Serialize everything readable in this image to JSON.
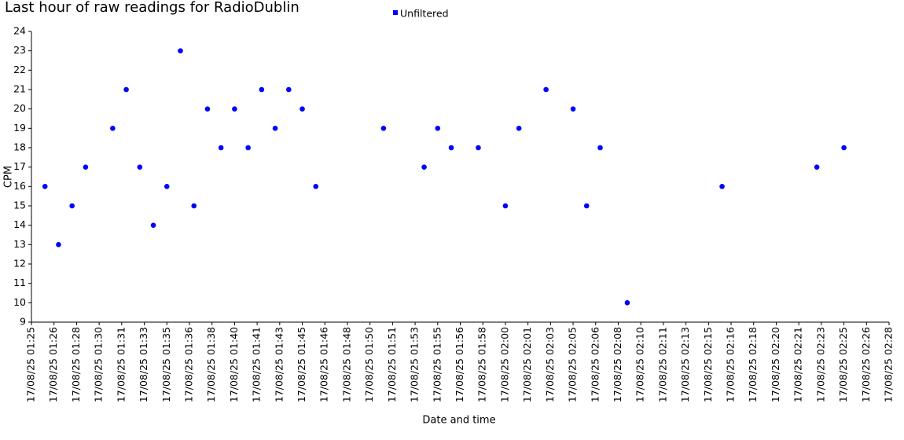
{
  "chart_data": {
    "type": "scatter",
    "title": "Last hour of raw readings for RadioDublin",
    "x_label": "Date and time",
    "y_label": "CPM",
    "legend": "top",
    "grid": false,
    "series": [
      {
        "name": "Unfiltered",
        "color": "#0000ff",
        "x": [
          "17/08/25 01:26",
          "17/08/25 01:27",
          "17/08/25 01:28",
          "17/08/25 01:29",
          "17/08/25 01:31",
          "17/08/25 01:32",
          "17/08/25 01:33",
          "17/08/25 01:34",
          "17/08/25 01:35",
          "17/08/25 01:36",
          "17/08/25 01:37",
          "17/08/25 01:38",
          "17/08/25 01:39",
          "17/08/25 01:40",
          "17/08/25 01:41",
          "17/08/25 01:42",
          "17/08/25 01:43",
          "17/08/25 01:44",
          "17/08/25 01:45",
          "17/08/25 01:46",
          "17/08/25 01:51",
          "17/08/25 01:54",
          "17/08/25 01:55",
          "17/08/25 01:56",
          "17/08/25 01:58",
          "17/08/25 02:00",
          "17/08/25 02:01",
          "17/08/25 02:03",
          "17/08/25 02:05",
          "17/08/25 02:06",
          "17/08/25 02:07",
          "17/08/25 02:09",
          "17/08/25 02:16",
          "17/08/25 02:23",
          "17/08/25 02:25"
        ],
        "values": [
          16,
          13,
          15,
          17,
          19,
          21,
          17,
          14,
          16,
          23,
          15,
          20,
          18,
          20,
          18,
          21,
          19,
          21,
          20,
          16,
          19,
          17,
          19,
          18,
          18,
          15,
          19,
          21,
          20,
          15,
          18,
          10,
          16,
          17,
          18
        ]
      }
    ],
    "xlim": [
      "17/08/25 01:25:00",
      "17/08/25 02:28:20"
    ],
    "xticks": [
      {
        "value": "17/08/25 01:25:00",
        "label": "17/08/25 01:25"
      },
      {
        "value": "17/08/25 01:26:40",
        "label": "17/08/25 01:26"
      },
      {
        "value": "17/08/25 01:28:20",
        "label": "17/08/25 01:28"
      },
      {
        "value": "17/08/25 01:30:00",
        "label": "17/08/25 01:30"
      },
      {
        "value": "17/08/25 01:31:40",
        "label": "17/08/25 01:31"
      },
      {
        "value": "17/08/25 01:33:20",
        "label": "17/08/25 01:33"
      },
      {
        "value": "17/08/25 01:35:00",
        "label": "17/08/25 01:35"
      },
      {
        "value": "17/08/25 01:36:40",
        "label": "17/08/25 01:36"
      },
      {
        "value": "17/08/25 01:38:20",
        "label": "17/08/25 01:38"
      },
      {
        "value": "17/08/25 01:40:00",
        "label": "17/08/25 01:40"
      },
      {
        "value": "17/08/25 01:41:40",
        "label": "17/08/25 01:41"
      },
      {
        "value": "17/08/25 01:43:20",
        "label": "17/08/25 01:43"
      },
      {
        "value": "17/08/25 01:45:00",
        "label": "17/08/25 01:45"
      },
      {
        "value": "17/08/25 01:46:40",
        "label": "17/08/25 01:46"
      },
      {
        "value": "17/08/25 01:48:20",
        "label": "17/08/25 01:48"
      },
      {
        "value": "17/08/25 01:50:00",
        "label": "17/08/25 01:50"
      },
      {
        "value": "17/08/25 01:51:40",
        "label": "17/08/25 01:51"
      },
      {
        "value": "17/08/25 01:53:20",
        "label": "17/08/25 01:53"
      },
      {
        "value": "17/08/25 01:55:00",
        "label": "17/08/25 01:55"
      },
      {
        "value": "17/08/25 01:56:40",
        "label": "17/08/25 01:56"
      },
      {
        "value": "17/08/25 01:58:20",
        "label": "17/08/25 01:58"
      },
      {
        "value": "17/08/25 02:00:00",
        "label": "17/08/25 02:00"
      },
      {
        "value": "17/08/25 02:01:40",
        "label": "17/08/25 02:01"
      },
      {
        "value": "17/08/25 02:03:20",
        "label": "17/08/25 02:03"
      },
      {
        "value": "17/08/25 02:05:00",
        "label": "17/08/25 02:05"
      },
      {
        "value": "17/08/25 02:06:40",
        "label": "17/08/25 02:06"
      },
      {
        "value": "17/08/25 02:08:20",
        "label": "17/08/25 02:08"
      },
      {
        "value": "17/08/25 02:10:00",
        "label": "17/08/25 02:10"
      },
      {
        "value": "17/08/25 02:11:40",
        "label": "17/08/25 02:11"
      },
      {
        "value": "17/08/25 02:13:20",
        "label": "17/08/25 02:13"
      },
      {
        "value": "17/08/25 02:15:00",
        "label": "17/08/25 02:15"
      },
      {
        "value": "17/08/25 02:16:40",
        "label": "17/08/25 02:16"
      },
      {
        "value": "17/08/25 02:18:20",
        "label": "17/08/25 02:18"
      },
      {
        "value": "17/08/25 02:20:00",
        "label": "17/08/25 02:20"
      },
      {
        "value": "17/08/25 02:21:40",
        "label": "17/08/25 02:21"
      },
      {
        "value": "17/08/25 02:23:20",
        "label": "17/08/25 02:23"
      },
      {
        "value": "17/08/25 02:25:00",
        "label": "17/08/25 02:25"
      },
      {
        "value": "17/08/25 02:26:40",
        "label": "17/08/25 02:26"
      },
      {
        "value": "17/08/25 02:28:20",
        "label": "17/08/25 02:28"
      }
    ],
    "ylim": [
      9,
      24
    ],
    "yticks": [
      9,
      10,
      11,
      12,
      13,
      14,
      15,
      16,
      17,
      18,
      19,
      20,
      21,
      22,
      23,
      24
    ]
  }
}
